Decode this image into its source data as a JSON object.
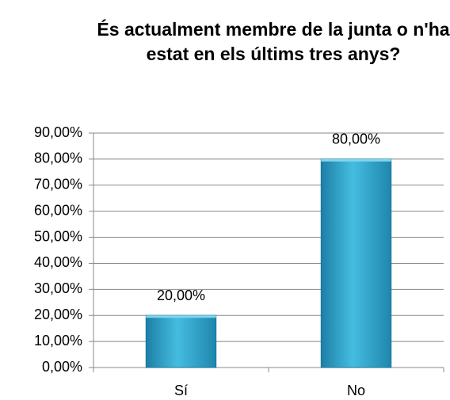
{
  "chart_data": {
    "type": "bar",
    "title": "És actualment membre de la junta o n'ha estat en els últims tres anys?",
    "categories": [
      "Sí",
      "No"
    ],
    "values": [
      20,
      80
    ],
    "value_labels": [
      "20,00%",
      "80,00%"
    ],
    "color": "#35a9cc",
    "ylim": [
      0,
      90
    ],
    "yticks": [
      {
        "value": 0,
        "label": "0,00%"
      },
      {
        "value": 10,
        "label": "10,00%"
      },
      {
        "value": 20,
        "label": "20,00%"
      },
      {
        "value": 30,
        "label": "30,00%"
      },
      {
        "value": 40,
        "label": "40,00%"
      },
      {
        "value": 50,
        "label": "50,00%"
      },
      {
        "value": 60,
        "label": "60,00%"
      },
      {
        "value": 70,
        "label": "70,00%"
      },
      {
        "value": 80,
        "label": "80,00%"
      },
      {
        "value": 90,
        "label": "90,00%"
      }
    ],
    "grid": true
  }
}
